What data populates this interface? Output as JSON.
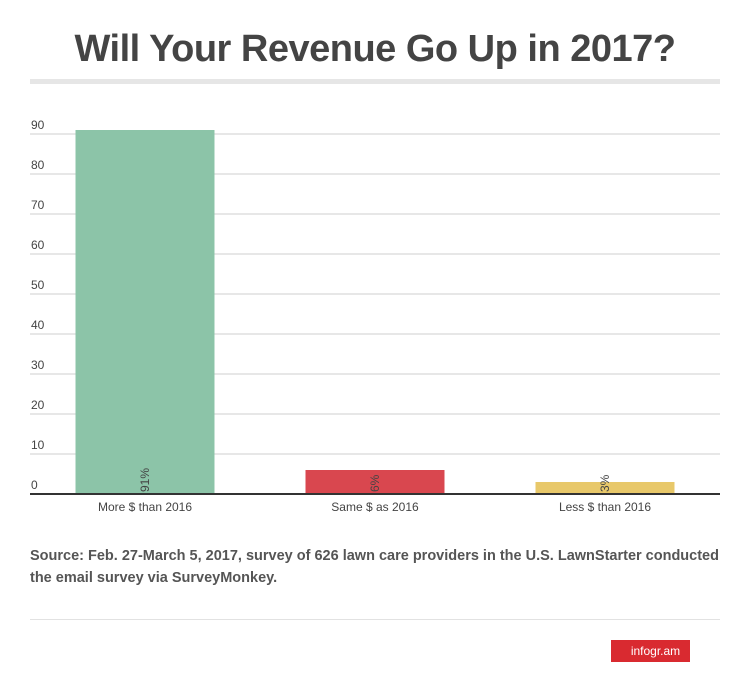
{
  "title": "Will Your Revenue Go Up in 2017?",
  "chart_data": {
    "type": "bar",
    "categories": [
      "More $ than 2016",
      "Same $ as 2016",
      "Less $ than 2016"
    ],
    "values": [
      91,
      6,
      3
    ],
    "value_labels": [
      "91%",
      "6%",
      "3%"
    ],
    "colors": [
      "#8cc4a8",
      "#d9474f",
      "#e8c86a"
    ],
    "yticks": [
      0,
      10,
      20,
      30,
      40,
      50,
      60,
      70,
      80,
      90
    ],
    "ylim": [
      0,
      90
    ],
    "xlabel": "",
    "ylabel": "",
    "grid": true
  },
  "source_text": "Source: Feb. 27-March 5, 2017, survey of 626 lawn care providers in the U.S. LawnStarter conducted the email survey via SurveyMonkey.",
  "badge_text": "infogr.am"
}
